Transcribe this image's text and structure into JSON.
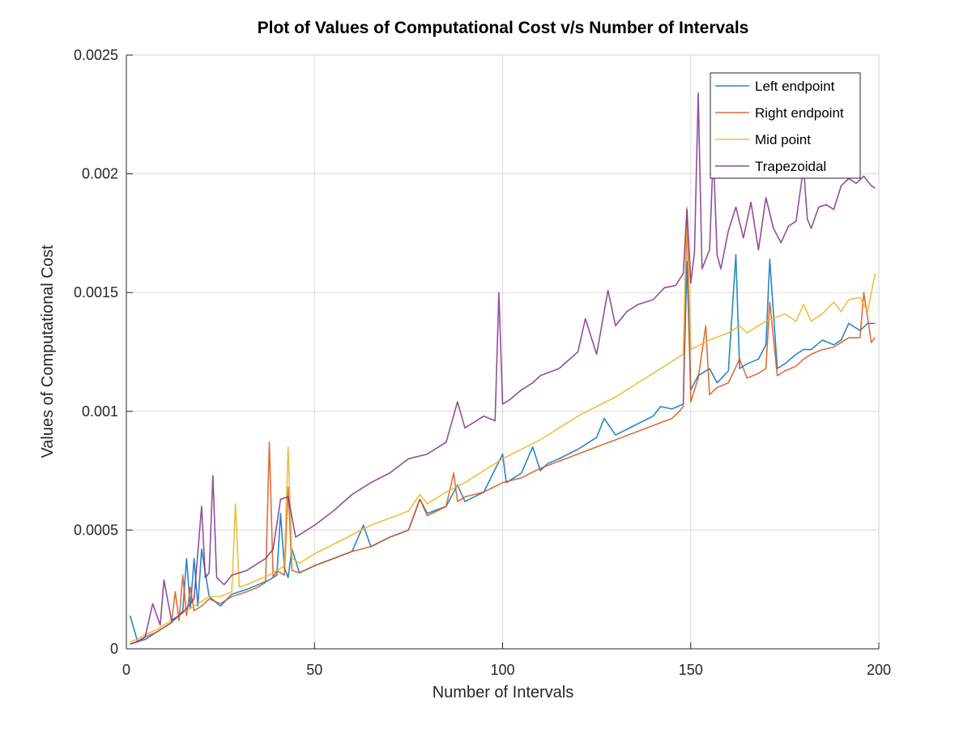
{
  "chart_data": {
    "type": "line",
    "title": "Plot of Values of Computational Cost v/s Number of Intervals",
    "xlabel": "Number of Intervals",
    "ylabel": "Values of Computational Cost",
    "xlim": [
      0,
      200
    ],
    "ylim": [
      0,
      0.0025
    ],
    "xticks": [
      0,
      50,
      100,
      150,
      200
    ],
    "xtick_labels": [
      "0",
      "50",
      "100",
      "150",
      "200"
    ],
    "yticks": [
      0,
      0.0005,
      0.001,
      0.0015,
      0.002,
      0.0025
    ],
    "ytick_labels": [
      "0",
      "0.0005",
      "0.001",
      "0.0015",
      "0.002",
      "0.0025"
    ],
    "grid": true,
    "legend_position": "top-right",
    "series": [
      {
        "name": "Left endpoint",
        "color": "#0072BD",
        "x": [
          1,
          3,
          5,
          8,
          10,
          12,
          14,
          15,
          16,
          17,
          18,
          19,
          20,
          22,
          25,
          28,
          30,
          32,
          35,
          38,
          40,
          41,
          42,
          43,
          44,
          46,
          50,
          55,
          60,
          63,
          65,
          70,
          75,
          78,
          80,
          85,
          88,
          90,
          95,
          100,
          101,
          105,
          108,
          110,
          112,
          115,
          120,
          125,
          127,
          130,
          135,
          140,
          142,
          145,
          148,
          149,
          150,
          152,
          155,
          157,
          160,
          162,
          163,
          165,
          168,
          170,
          171,
          173,
          175,
          178,
          180,
          182,
          185,
          188,
          190,
          192,
          195,
          197,
          199
        ],
        "y": [
          0.00014,
          3e-05,
          4e-05,
          7e-05,
          9e-05,
          0.00011,
          0.00014,
          0.00016,
          0.00038,
          0.00017,
          0.00038,
          0.00018,
          0.00042,
          0.00022,
          0.00018,
          0.00023,
          0.00024,
          0.00025,
          0.00027,
          0.00029,
          0.00031,
          0.00057,
          0.00034,
          0.0003,
          0.00042,
          0.00032,
          0.00035,
          0.00038,
          0.00041,
          0.00052,
          0.00043,
          0.00047,
          0.0005,
          0.00063,
          0.00057,
          0.0006,
          0.00069,
          0.00062,
          0.00066,
          0.00082,
          0.0007,
          0.00074,
          0.00085,
          0.00075,
          0.00078,
          0.0008,
          0.00084,
          0.00089,
          0.00097,
          0.0009,
          0.00094,
          0.00098,
          0.00102,
          0.00101,
          0.00103,
          0.00163,
          0.00109,
          0.00115,
          0.00118,
          0.00112,
          0.00117,
          0.00166,
          0.00118,
          0.0012,
          0.00122,
          0.00128,
          0.00164,
          0.00118,
          0.0012,
          0.00124,
          0.00126,
          0.00126,
          0.0013,
          0.00128,
          0.0013,
          0.00137,
          0.00134,
          0.00137,
          0.00137
        ]
      },
      {
        "name": "Right endpoint",
        "color": "#D95319",
        "x": [
          1,
          3,
          5,
          8,
          10,
          12,
          13,
          14,
          15,
          16,
          17,
          18,
          20,
          22,
          25,
          28,
          30,
          32,
          35,
          37,
          38,
          39,
          40,
          42,
          43,
          44,
          46,
          50,
          55,
          60,
          65,
          70,
          75,
          78,
          80,
          85,
          87,
          88,
          90,
          95,
          100,
          105,
          110,
          115,
          120,
          125,
          130,
          135,
          140,
          145,
          147,
          148,
          149,
          150,
          152,
          154,
          155,
          157,
          160,
          163,
          165,
          168,
          170,
          171,
          173,
          175,
          178,
          180,
          182,
          185,
          188,
          190,
          192,
          195,
          196,
          198,
          199
        ],
        "y": [
          2e-05,
          3e-05,
          5e-05,
          7e-05,
          9e-05,
          0.00011,
          0.00024,
          0.00012,
          0.00031,
          0.00014,
          0.00026,
          0.00016,
          0.00018,
          0.00021,
          0.00019,
          0.00022,
          0.00023,
          0.00024,
          0.00026,
          0.00028,
          0.00087,
          0.0003,
          0.00033,
          0.00031,
          0.00068,
          0.00033,
          0.00032,
          0.00035,
          0.00038,
          0.00041,
          0.00043,
          0.00047,
          0.0005,
          0.00063,
          0.00056,
          0.0006,
          0.00074,
          0.00062,
          0.00064,
          0.00066,
          0.0007,
          0.00072,
          0.00076,
          0.00079,
          0.00082,
          0.00085,
          0.00088,
          0.00091,
          0.00094,
          0.00097,
          0.001,
          0.00102,
          0.00185,
          0.00104,
          0.00114,
          0.00136,
          0.00107,
          0.0011,
          0.00112,
          0.00122,
          0.00114,
          0.00116,
          0.00118,
          0.00146,
          0.00115,
          0.00117,
          0.00119,
          0.00122,
          0.00124,
          0.00126,
          0.00127,
          0.00129,
          0.00131,
          0.00131,
          0.0015,
          0.00129,
          0.00131
        ]
      },
      {
        "name": "Mid point",
        "color": "#EDB120",
        "x": [
          1,
          3,
          5,
          8,
          10,
          12,
          15,
          18,
          20,
          22,
          25,
          28,
          29,
          30,
          32,
          35,
          38,
          40,
          42,
          43,
          44,
          46,
          50,
          55,
          60,
          65,
          70,
          75,
          78,
          80,
          85,
          90,
          95,
          100,
          105,
          110,
          115,
          120,
          125,
          130,
          135,
          140,
          145,
          148,
          149,
          150,
          155,
          160,
          163,
          165,
          168,
          170,
          175,
          178,
          180,
          182,
          185,
          188,
          190,
          192,
          195,
          197,
          199
        ],
        "y": [
          3e-05,
          4e-05,
          6e-05,
          8e-05,
          0.0001,
          0.00012,
          0.00015,
          0.00018,
          0.0002,
          0.00022,
          0.00022,
          0.00024,
          0.00061,
          0.00026,
          0.00027,
          0.00029,
          0.00031,
          0.00033,
          0.00035,
          0.00085,
          0.00038,
          0.00036,
          0.0004,
          0.00044,
          0.00048,
          0.00052,
          0.00055,
          0.00058,
          0.00065,
          0.00061,
          0.00066,
          0.0007,
          0.00075,
          0.0008,
          0.00084,
          0.00088,
          0.00093,
          0.00098,
          0.00102,
          0.00106,
          0.00111,
          0.00116,
          0.00121,
          0.00124,
          0.00186,
          0.00126,
          0.0013,
          0.00133,
          0.00136,
          0.00133,
          0.00136,
          0.00138,
          0.00141,
          0.00138,
          0.00145,
          0.00138,
          0.00141,
          0.00146,
          0.00142,
          0.00147,
          0.00148,
          0.00142,
          0.00158
        ]
      },
      {
        "name": "Trapezoidal",
        "color": "#7E2F8E",
        "x": [
          1,
          3,
          5,
          7,
          9,
          10,
          12,
          14,
          16,
          18,
          20,
          21,
          22,
          23,
          24,
          26,
          28,
          30,
          32,
          35,
          37,
          39,
          41,
          43,
          45,
          50,
          55,
          60,
          65,
          70,
          75,
          80,
          85,
          88,
          90,
          95,
          98,
          99,
          100,
          102,
          105,
          108,
          110,
          115,
          120,
          122,
          125,
          128,
          130,
          133,
          136,
          140,
          143,
          146,
          148,
          149,
          150,
          151,
          152,
          153,
          155,
          156,
          157,
          158,
          160,
          162,
          164,
          166,
          168,
          170,
          172,
          174,
          176,
          178,
          180,
          181,
          182,
          184,
          186,
          188,
          190,
          192,
          194,
          196,
          198,
          199
        ],
        "y": [
          2e-05,
          3e-05,
          5e-05,
          0.00019,
          0.0001,
          0.00029,
          0.00012,
          0.00014,
          0.00017,
          0.00021,
          0.0006,
          0.0003,
          0.00032,
          0.00073,
          0.0003,
          0.00027,
          0.00031,
          0.00032,
          0.00033,
          0.00036,
          0.00038,
          0.00042,
          0.00063,
          0.00064,
          0.00047,
          0.00052,
          0.00058,
          0.00065,
          0.0007,
          0.00074,
          0.0008,
          0.00082,
          0.00087,
          0.00104,
          0.00093,
          0.00098,
          0.00096,
          0.0015,
          0.00103,
          0.00105,
          0.00109,
          0.00112,
          0.00115,
          0.00118,
          0.00125,
          0.00139,
          0.00124,
          0.00151,
          0.00136,
          0.00142,
          0.00145,
          0.00147,
          0.00152,
          0.00153,
          0.00158,
          0.00185,
          0.00154,
          0.00167,
          0.00234,
          0.0016,
          0.00168,
          0.00209,
          0.00166,
          0.0016,
          0.00176,
          0.00186,
          0.00173,
          0.00188,
          0.00168,
          0.0019,
          0.00177,
          0.00171,
          0.00178,
          0.0018,
          0.00203,
          0.00181,
          0.00177,
          0.00186,
          0.00187,
          0.00185,
          0.00195,
          0.00198,
          0.00196,
          0.00199,
          0.00195,
          0.00194
        ]
      }
    ]
  }
}
